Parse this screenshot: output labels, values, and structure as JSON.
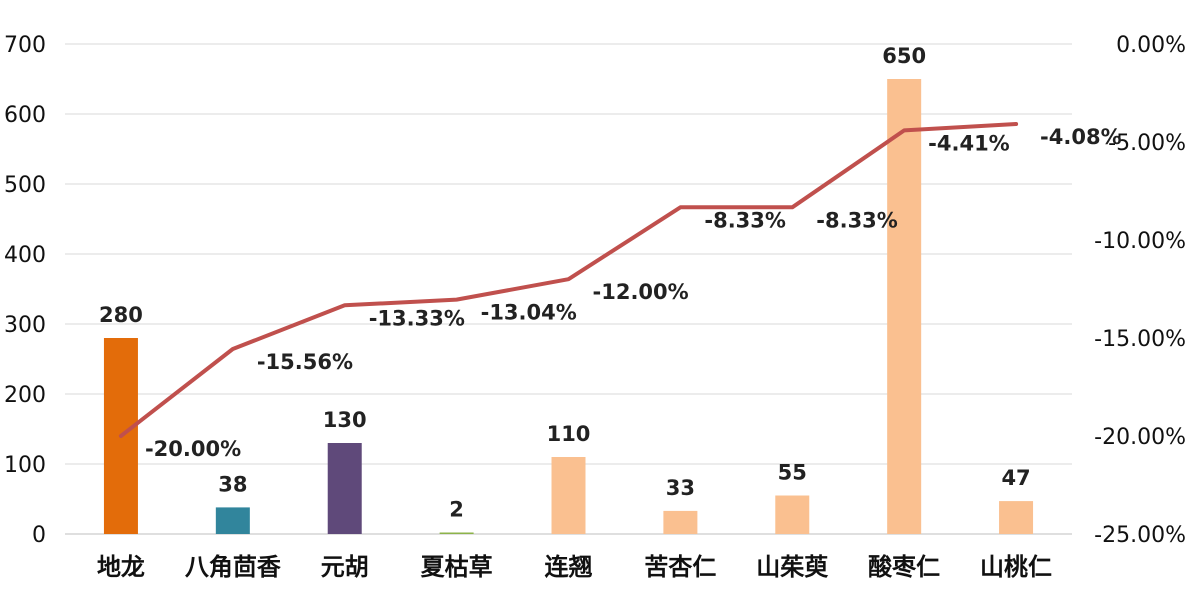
{
  "chart_data": {
    "type": "bar+line",
    "categories": [
      "地龙",
      "八角茴香",
      "元胡",
      "夏枯草",
      "连翘",
      "苦杏仁",
      "山茱萸",
      "酸枣仁",
      "山桃仁"
    ],
    "bar_series": {
      "values": [
        280,
        38,
        130,
        2,
        110,
        33,
        55,
        650,
        47
      ],
      "value_labels": [
        "280",
        "38",
        "130",
        "2",
        "110",
        "33",
        "55",
        "650",
        "47"
      ],
      "colors": [
        "#E36C0A",
        "#31859C",
        "#5F497A",
        "#8DB34A",
        "#FAC090",
        "#FAC090",
        "#FAC090",
        "#FAC090",
        "#FAC090"
      ]
    },
    "line_series": {
      "values": [
        -20.0,
        -15.56,
        -13.33,
        -13.04,
        -12.0,
        -8.33,
        -8.33,
        -4.41,
        -4.08
      ],
      "value_labels": [
        "-20.00%",
        "-15.56%",
        "-13.33%",
        "-13.04%",
        "-12.00%",
        "-8.33%",
        "-8.33%",
        "-4.41%",
        "-4.08%"
      ],
      "color": "#C0504D"
    },
    "y_left": {
      "min": 0,
      "max": 700,
      "step": 100,
      "tick_labels": [
        "0",
        "100",
        "200",
        "300",
        "400",
        "500",
        "600",
        "700"
      ]
    },
    "y_right": {
      "min": -25,
      "max": 0,
      "step": 5,
      "tick_labels": [
        "-25.00%",
        "-20.00%",
        "-15.00%",
        "-10.00%",
        "-5.00%",
        "0.00%"
      ]
    },
    "grid": true,
    "legend": "none"
  }
}
